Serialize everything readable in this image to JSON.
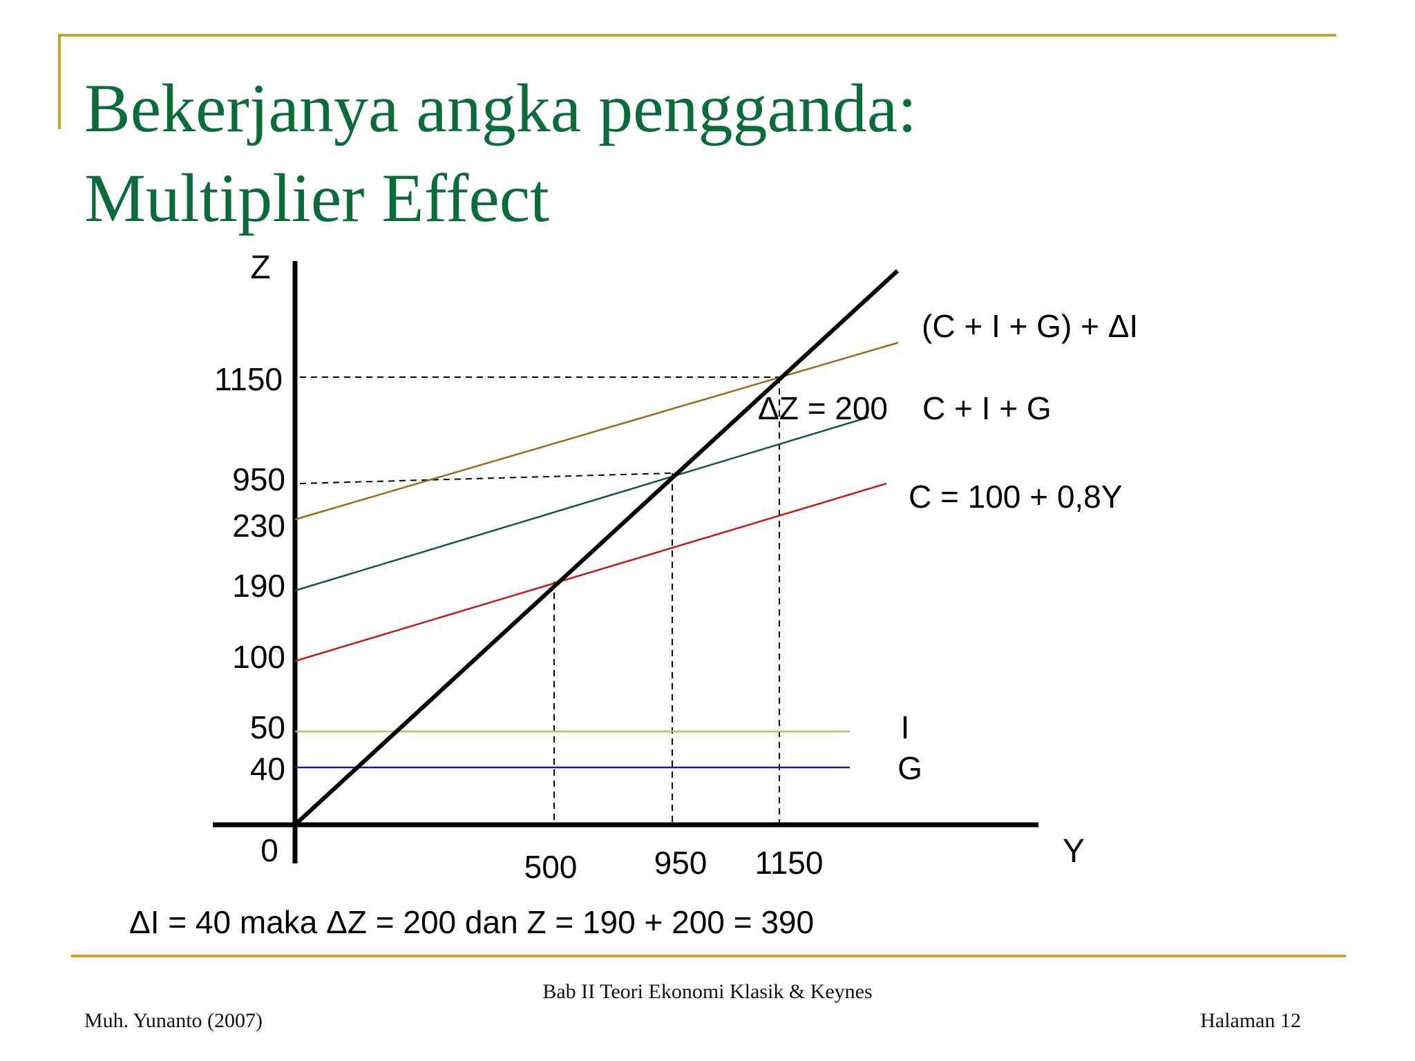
{
  "slide": {
    "title_line1": "Bekerjanya angka pengganda:",
    "title_line2": "Multiplier Effect",
    "accent_color": "#c9a227",
    "title_color": "#0b6b3a"
  },
  "diagram": {
    "z_axis_label": "Z",
    "y_axis_label": "Y",
    "origin_label": "0",
    "z_ticks": [
      "1150",
      "950",
      "230",
      "190",
      "100",
      "50",
      "40"
    ],
    "y_ticks": [
      "500",
      "950",
      "1150"
    ],
    "lines": {
      "c_i_g_delta": {
        "label": "(C + I + G) + ΔI",
        "color": "#9a6b12"
      },
      "c_i_g": {
        "label": "C + I + G",
        "color": "#0f5a3a"
      },
      "consumption": {
        "label": "C = 100 + 0,8Y",
        "color": "#c0181f"
      },
      "investment": {
        "label": "I",
        "color": "#b5c15a"
      },
      "government": {
        "label": "G",
        "color": "#1d1d8f"
      },
      "forty_five": {
        "color": "#000000"
      }
    },
    "delta_z_label": "ΔZ = 200",
    "equation": "ΔI = 40  maka ΔZ = 200 dan Z = 190 + 200 = 390"
  },
  "footer": {
    "center": "Bab II Teori Ekonomi Klasik & Keynes",
    "left": "Muh. Yunanto (2007)",
    "right": "Halaman 12"
  }
}
